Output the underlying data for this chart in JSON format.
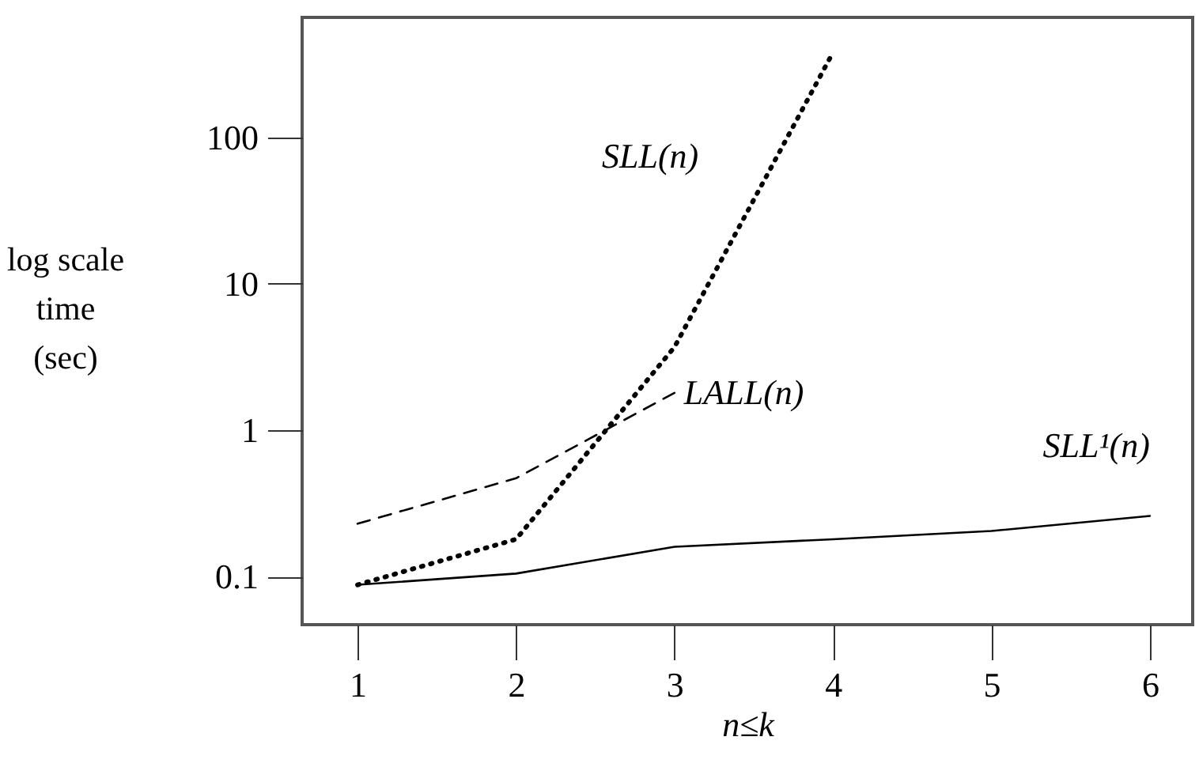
{
  "chart_data": {
    "type": "line",
    "xlabel": "n≤k",
    "ylabel": "log scale\ntime\n(sec)",
    "xlim": [
      0.65,
      6.27
    ],
    "xticks": [
      1,
      2,
      3,
      4,
      5,
      6
    ],
    "ylim": [
      0.047,
      660
    ],
    "yticks": [
      0.1,
      1,
      10,
      100
    ],
    "log": "y",
    "grid": false,
    "marker": "none",
    "series": [
      {
        "name": "SLL(n)",
        "color": "#000000",
        "line_style": "dotted",
        "x": [
          1,
          2,
          3,
          4
        ],
        "values": [
          0.088,
          0.18,
          3.7,
          380
        ]
      },
      {
        "name": "LALL(n)",
        "color": "#000000",
        "line_style": "dashed",
        "x": [
          1,
          2,
          3
        ],
        "values": [
          0.23,
          0.47,
          1.8
        ]
      },
      {
        "name": "SLL¹(n)",
        "color": "#000000",
        "line_style": "solid",
        "x": [
          1,
          2,
          3,
          4,
          5,
          6
        ],
        "values": [
          0.088,
          0.105,
          0.16,
          0.18,
          0.205,
          0.26
        ]
      }
    ]
  }
}
